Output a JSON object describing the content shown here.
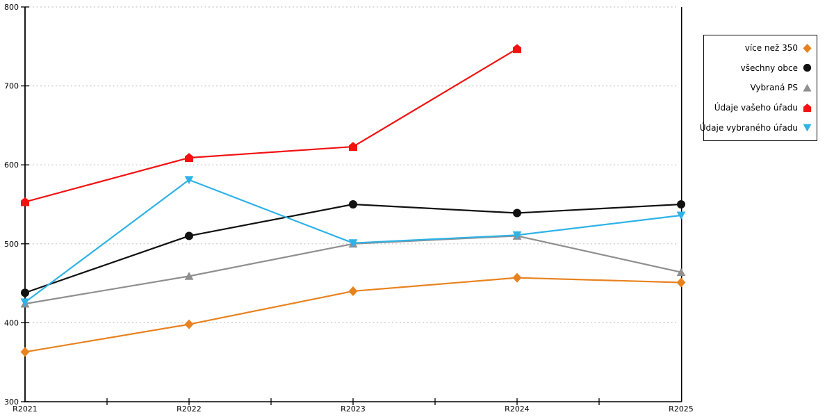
{
  "chart_data": {
    "type": "line",
    "categories": [
      "R2021",
      "R2022",
      "R2023",
      "R2024",
      "R2025"
    ],
    "series": [
      {
        "name": "více než 350",
        "color": "#e8821e",
        "marker": "diamond",
        "values": [
          363,
          398,
          440,
          457,
          451
        ]
      },
      {
        "name": "všechny obce",
        "color": "#111111",
        "marker": "circle",
        "values": [
          438,
          510,
          550,
          539,
          550
        ]
      },
      {
        "name": "Vybraná PS",
        "color": "#8f8f8f",
        "marker": "triangle-up",
        "values": [
          424,
          459,
          500,
          510,
          464
        ]
      },
      {
        "name": "Údaje vašeho úřadu",
        "color": "#f21212",
        "marker": "pentagon",
        "values": [
          553,
          609,
          623,
          747,
          null
        ]
      },
      {
        "name": "Údaje vybraného úřadu",
        "color": "#2eb2e8",
        "marker": "triangle-down",
        "values": [
          426,
          581,
          501,
          511,
          536
        ]
      }
    ],
    "title": "",
    "xlabel": "",
    "ylabel": "",
    "ylim": [
      300,
      800
    ],
    "ytick_step": 100,
    "ytick_labels": [
      "300",
      "400",
      "500",
      "600",
      "700",
      "800"
    ],
    "grid": "horizontal dotted gridlines at 400,500,600,700,800",
    "legend_position": "right",
    "legend_order": [
      "více než 350",
      "všechny obce",
      "Vybraná PS",
      "Údaje vašeho úřadu",
      "Údaje vybraného úřadu"
    ]
  },
  "colors": {
    "gridline": "#c6c6c6",
    "axis": "#000000",
    "background": "#ffffff",
    "label_text": "#000000"
  }
}
